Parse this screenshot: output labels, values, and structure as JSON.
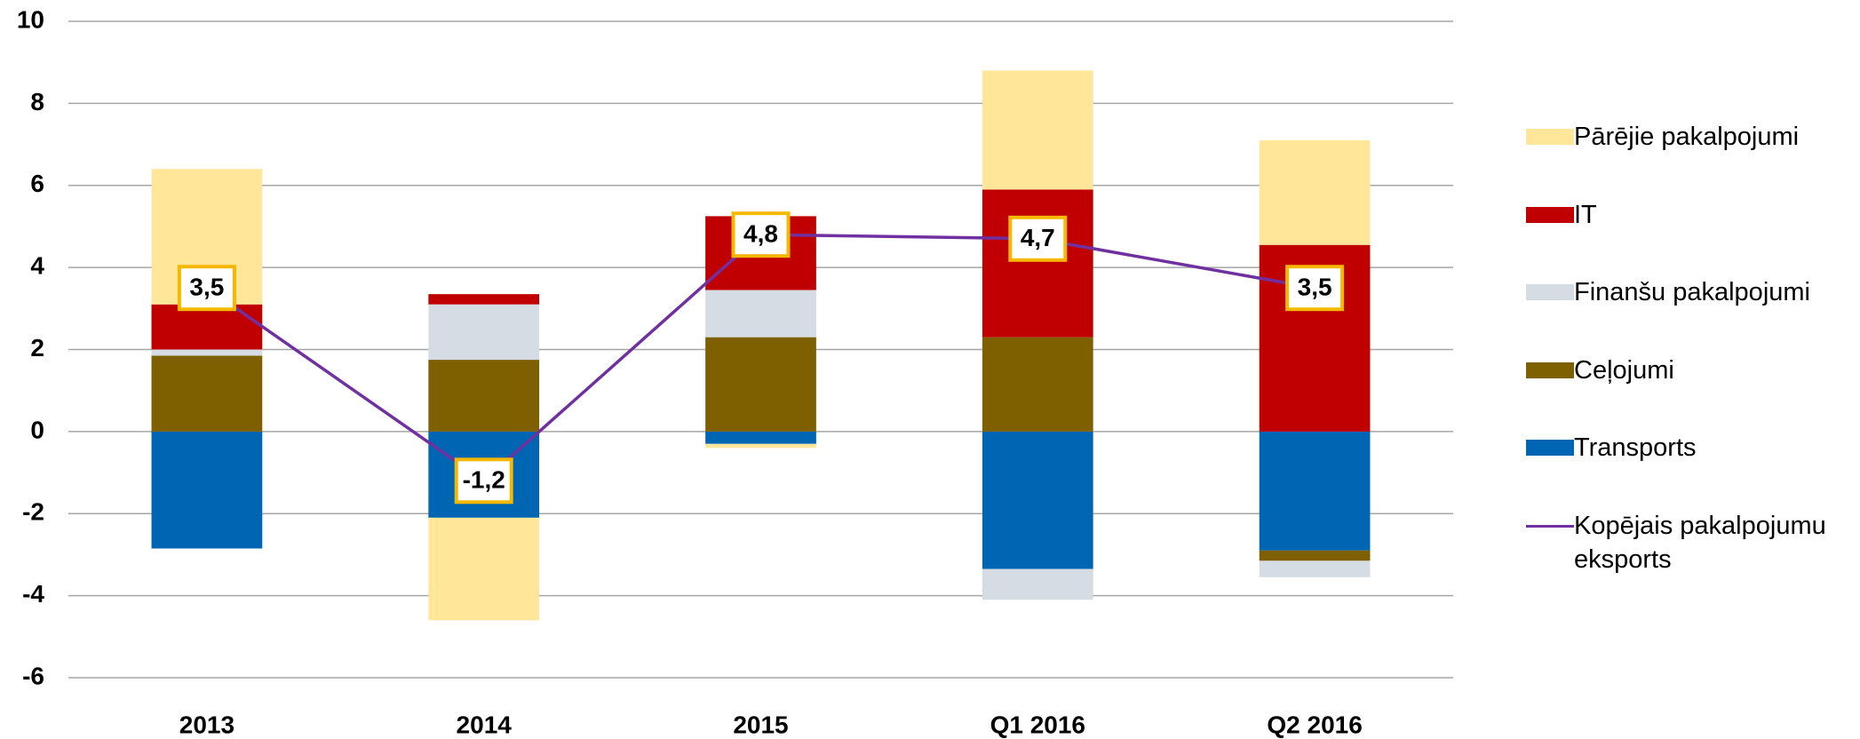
{
  "chart_data": {
    "type": "bar",
    "categories": [
      "2013",
      "2014",
      "2015",
      "Q1 2016",
      "Q2 2016"
    ],
    "stacked": true,
    "series": [
      {
        "name": "Transports",
        "color": "#0066b3",
        "values": [
          -2.85,
          -2.1,
          -0.3,
          -3.35,
          -2.9
        ]
      },
      {
        "name": "Ceļojumi",
        "color": "#7f6000",
        "values": [
          1.85,
          1.75,
          2.3,
          2.3,
          -0.25
        ]
      },
      {
        "name": "Finanšu pakalpojumi",
        "color": "#d6dce4",
        "values": [
          0.15,
          1.35,
          1.15,
          -0.75,
          -0.4
        ]
      },
      {
        "name": "IT",
        "color": "#c00000",
        "values": [
          1.1,
          0.25,
          1.8,
          3.6,
          4.55
        ]
      },
      {
        "name": "Pārējie pakalpojumi",
        "color": "#ffe699",
        "values": [
          3.3,
          -2.5,
          -0.1,
          2.9,
          2.55
        ]
      },
      {
        "name": "Kopējais pakalpojumu eksports",
        "type": "line",
        "color": "#7030a0",
        "values": [
          3.5,
          -1.2,
          4.8,
          4.7,
          3.5
        ],
        "value_labels": [
          "3,5",
          "-1,2",
          "4,8",
          "4,7",
          "3,5"
        ]
      }
    ],
    "ylim": [
      -6,
      10
    ],
    "yticks": [
      -6,
      -4,
      -2,
      0,
      2,
      4,
      6,
      8,
      10
    ],
    "grid": true,
    "legend": "right"
  }
}
